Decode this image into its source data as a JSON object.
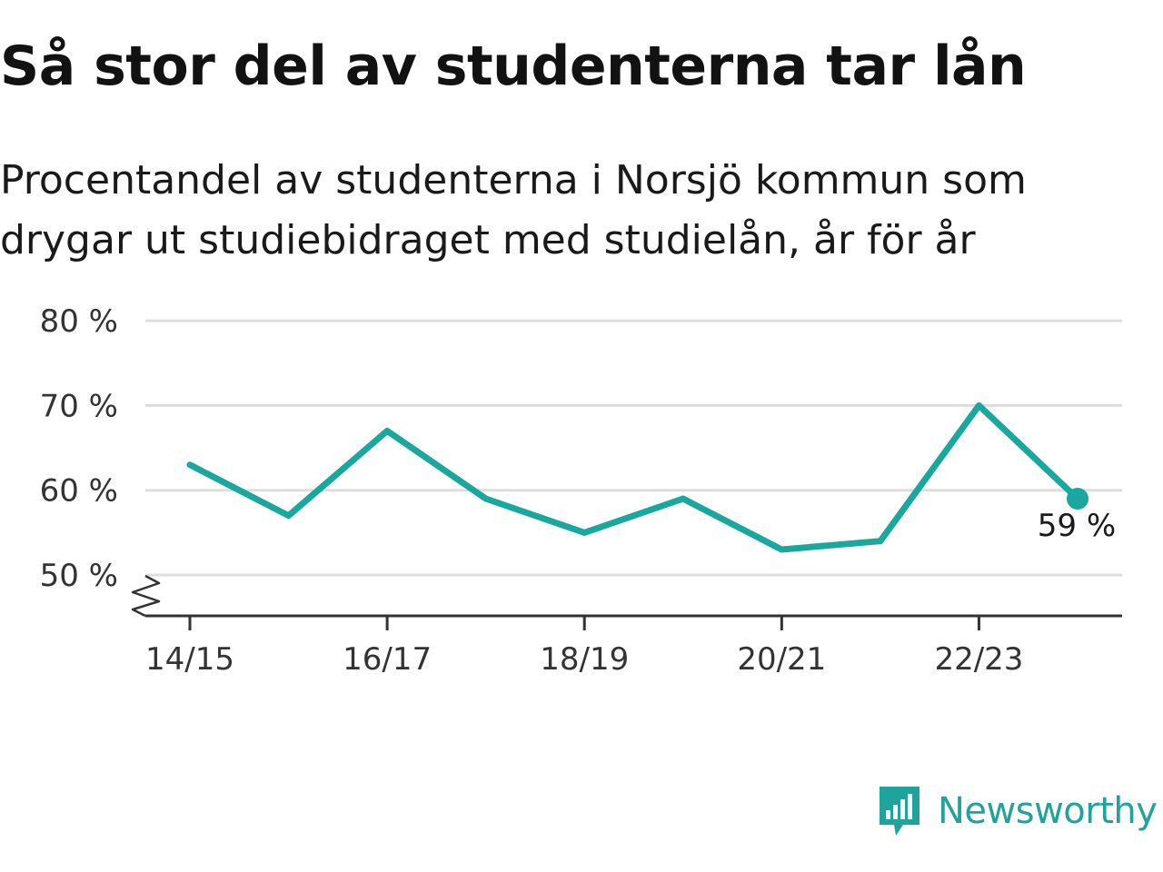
{
  "header": {
    "title": "Så stor del av studenterna tar lån",
    "subtitle_line1": "Procentandel av studenterna i Norsjö kommun som",
    "subtitle_line2": "drygar ut studiebidraget med studielån, år för år"
  },
  "brand": {
    "name": "Newsworthy",
    "icon": "newsworthy-logo-icon",
    "color": "#1fa39a"
  },
  "colors": {
    "series": "#1aa79d",
    "grid": "#dddddd",
    "axis": "#333333"
  },
  "chart_data": {
    "type": "line",
    "x": [
      "14/15",
      "15/16",
      "16/17",
      "17/18",
      "18/19",
      "19/20",
      "20/21",
      "21/22",
      "22/23",
      "23/24"
    ],
    "x_tick_labels": [
      "14/15",
      "16/17",
      "18/19",
      "20/21",
      "22/23"
    ],
    "series": [
      {
        "values": [
          63,
          57,
          67,
          59,
          55,
          59,
          53,
          54,
          70,
          59
        ]
      }
    ],
    "y_ticks": [
      50,
      60,
      70,
      80
    ],
    "y_tick_labels": [
      "50 %",
      "60 %",
      "70 %",
      "80 %"
    ],
    "ylim": [
      45,
      80
    ],
    "y_axis_break": true,
    "grid": true,
    "end_label": "59 %"
  }
}
